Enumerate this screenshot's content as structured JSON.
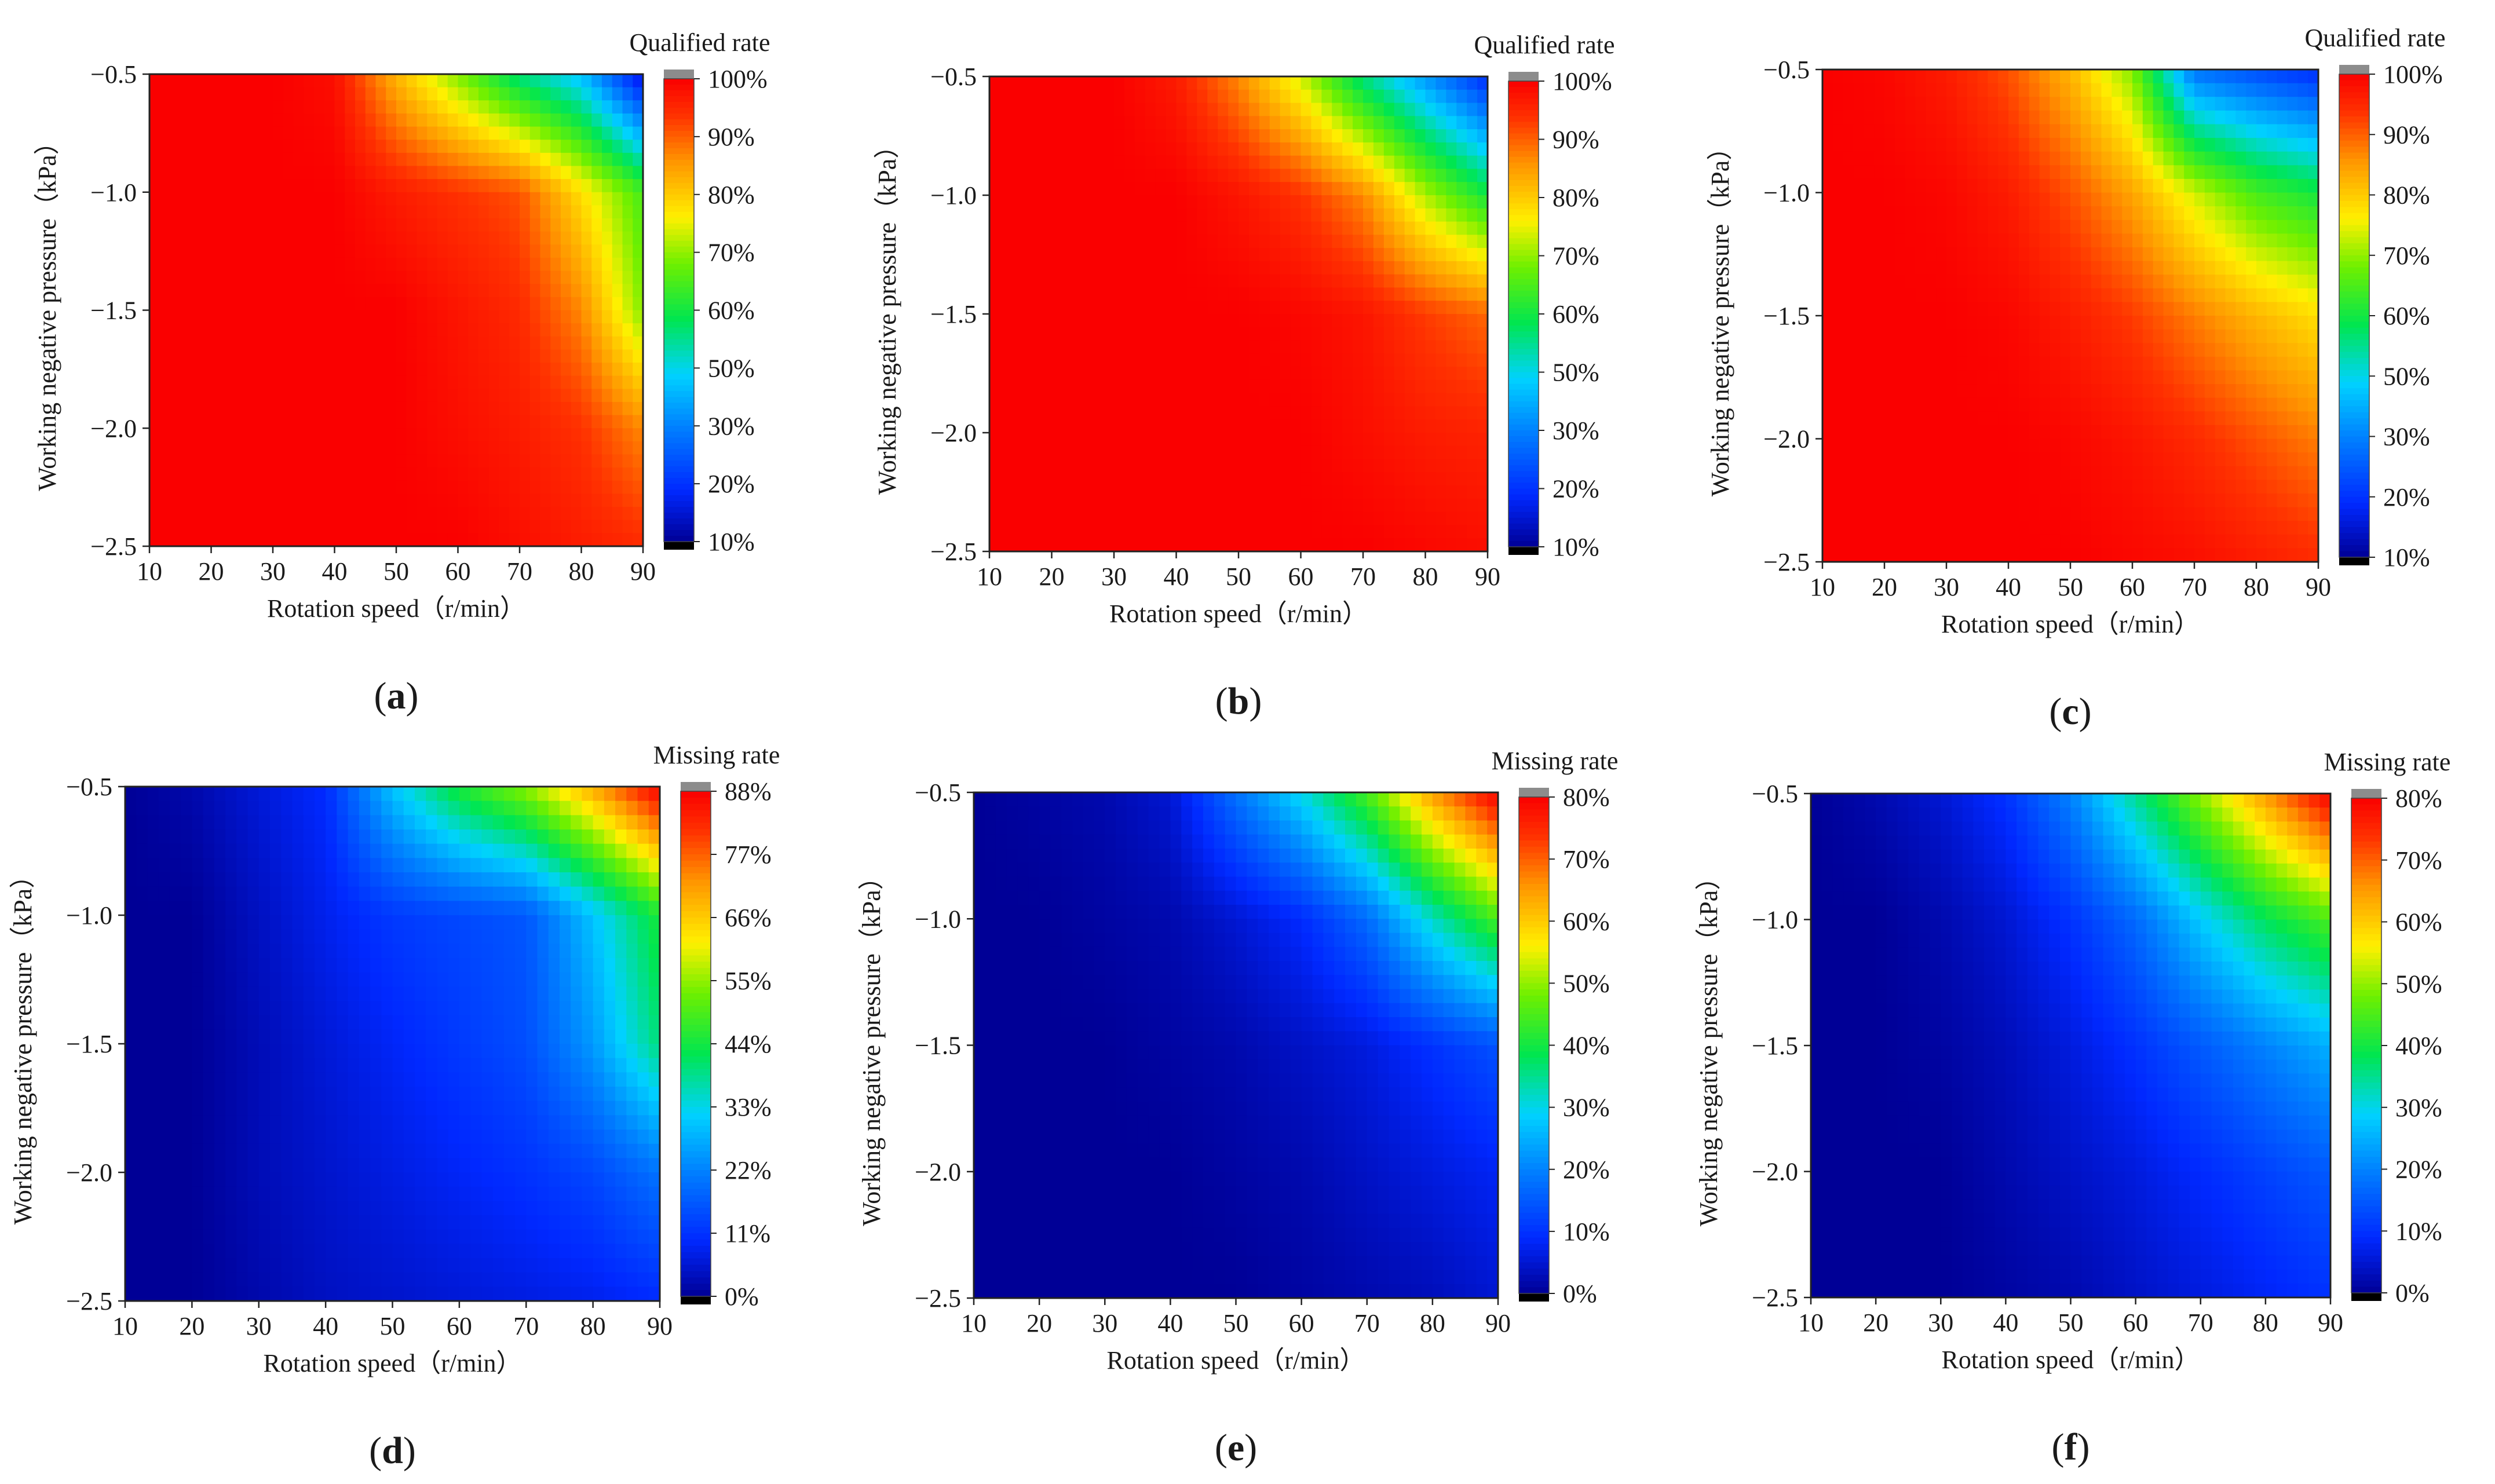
{
  "figure": {
    "panels": [
      {
        "id": "a",
        "caption": "a",
        "colorbar_title": "Qualified rate",
        "colorbar_ticks": [
          "100%",
          "90%",
          "80%",
          "70%",
          "60%",
          "50%",
          "30%",
          "20%",
          "10%"
        ]
      },
      {
        "id": "b",
        "caption": "b",
        "colorbar_title": "Qualified rate",
        "colorbar_ticks": [
          "100%",
          "90%",
          "80%",
          "70%",
          "60%",
          "50%",
          "30%",
          "20%",
          "10%"
        ]
      },
      {
        "id": "c",
        "caption": "c",
        "colorbar_title": "Qualified rate",
        "colorbar_ticks": [
          "100%",
          "90%",
          "80%",
          "70%",
          "60%",
          "50%",
          "30%",
          "20%",
          "10%"
        ]
      },
      {
        "id": "d",
        "caption": "d",
        "colorbar_title": "Missing rate",
        "colorbar_ticks": [
          "88%",
          "77%",
          "66%",
          "55%",
          "44%",
          "33%",
          "22%",
          "11%",
          "0%"
        ]
      },
      {
        "id": "e",
        "caption": "e",
        "colorbar_title": "Missing rate",
        "colorbar_ticks": [
          "80%",
          "70%",
          "60%",
          "50%",
          "40%",
          "30%",
          "20%",
          "10%",
          "0%"
        ]
      },
      {
        "id": "f",
        "caption": "f",
        "colorbar_title": "Missing rate",
        "colorbar_ticks": [
          "80%",
          "70%",
          "60%",
          "50%",
          "40%",
          "30%",
          "20%",
          "10%",
          "0%"
        ]
      }
    ]
  },
  "chart_data": [
    {
      "type": "heatmap",
      "panel": "a",
      "title": "Qualified rate",
      "xlabel": "Rotation speed（r/min）",
      "ylabel": "Working negative pressure（kPa）",
      "x": [
        10,
        20,
        30,
        40,
        50,
        60,
        70,
        80,
        90
      ],
      "y": [
        -0.5,
        -1.0,
        -1.5,
        -2.0,
        -2.5
      ],
      "xticks": [
        "10",
        "20",
        "30",
        "40",
        "50",
        "60",
        "70",
        "80",
        "90"
      ],
      "yticks": [
        "−0.5",
        "−1.0",
        "−1.5",
        "−2.0",
        "−2.5"
      ],
      "z": [
        [
          100,
          100,
          100,
          98,
          80,
          65,
          50,
          40,
          15
        ],
        [
          100,
          100,
          100,
          100,
          96,
          93,
          90,
          75,
          60
        ],
        [
          100,
          100,
          100,
          100,
          100,
          97,
          94,
          85,
          65
        ],
        [
          100,
          100,
          100,
          100,
          100,
          98,
          96,
          93,
          85
        ],
        [
          100,
          100,
          100,
          100,
          100,
          100,
          98,
          96,
          94
        ]
      ],
      "zlim": [
        10,
        100
      ]
    },
    {
      "type": "heatmap",
      "panel": "b",
      "title": "Qualified rate",
      "xlabel": "Rotation speed（r/min）",
      "ylabel": "Working negative pressure（kPa）",
      "x": [
        10,
        20,
        30,
        40,
        50,
        60,
        70,
        80,
        90
      ],
      "y": [
        -0.5,
        -1.0,
        -1.5,
        -2.0,
        -2.5
      ],
      "xticks": [
        "10",
        "20",
        "30",
        "40",
        "50",
        "60",
        "70",
        "80",
        "90"
      ],
      "yticks": [
        "−0.5",
        "−1.0",
        "−1.5",
        "−2.0",
        "−2.5"
      ],
      "z": [
        [
          100,
          100,
          100,
          96,
          85,
          70,
          50,
          35,
          20
        ],
        [
          100,
          100,
          100,
          100,
          97,
          93,
          85,
          68,
          55
        ],
        [
          100,
          100,
          100,
          100,
          100,
          99,
          97,
          92,
          88
        ],
        [
          100,
          100,
          100,
          100,
          100,
          100,
          98,
          96,
          95
        ],
        [
          100,
          100,
          100,
          100,
          100,
          100,
          100,
          99,
          98
        ]
      ],
      "zlim": [
        10,
        100
      ]
    },
    {
      "type": "heatmap",
      "panel": "c",
      "title": "Qualified rate",
      "xlabel": "Rotation speed（r/min）",
      "ylabel": "Working negative pressure（kPa）",
      "x": [
        10,
        20,
        30,
        40,
        50,
        60,
        70,
        80,
        90
      ],
      "y": [
        -0.5,
        -1.0,
        -1.5,
        -2.0,
        -2.5
      ],
      "xticks": [
        "10",
        "20",
        "30",
        "40",
        "50",
        "60",
        "70",
        "80",
        "90"
      ],
      "yticks": [
        "−0.5",
        "−1.0",
        "−1.5",
        "−2.0",
        "−2.5"
      ],
      "z": [
        [
          100,
          99,
          96,
          90,
          80,
          65,
          30,
          25,
          20
        ],
        [
          100,
          100,
          99,
          96,
          90,
          82,
          70,
          60,
          55
        ],
        [
          100,
          100,
          100,
          99,
          96,
          92,
          86,
          80,
          75
        ],
        [
          100,
          100,
          100,
          100,
          99,
          97,
          94,
          90,
          86
        ],
        [
          100,
          100,
          100,
          100,
          100,
          99,
          98,
          96,
          94
        ]
      ],
      "zlim": [
        10,
        100
      ]
    },
    {
      "type": "heatmap",
      "panel": "d",
      "title": "Missing rate",
      "xlabel": "Rotation speed（r/min）",
      "ylabel": "Working negative pressure（kPa）",
      "x": [
        10,
        20,
        30,
        40,
        50,
        60,
        70,
        80,
        90
      ],
      "y": [
        -0.5,
        -1.0,
        -1.5,
        -2.0,
        -2.5
      ],
      "xticks": [
        "10",
        "20",
        "30",
        "40",
        "50",
        "60",
        "70",
        "80",
        "90"
      ],
      "yticks": [
        "−0.5",
        "−1.0",
        "−1.5",
        "−2.0",
        "−2.5"
      ],
      "z": [
        [
          0,
          2,
          6,
          10,
          30,
          45,
          55,
          70,
          88
        ],
        [
          0,
          0,
          4,
          8,
          12,
          14,
          16,
          30,
          45
        ],
        [
          0,
          0,
          3,
          6,
          9,
          12,
          15,
          25,
          40
        ],
        [
          0,
          0,
          3,
          5,
          7,
          9,
          11,
          14,
          20
        ],
        [
          0,
          0,
          2,
          4,
          5,
          6,
          7,
          8,
          10
        ]
      ],
      "zlim": [
        0,
        88
      ]
    },
    {
      "type": "heatmap",
      "panel": "e",
      "title": "Missing rate",
      "xlabel": "Rotation speed（r/min）",
      "ylabel": "Working negative pressure（kPa）",
      "x": [
        10,
        20,
        30,
        40,
        50,
        60,
        70,
        80,
        90
      ],
      "y": [
        -0.5,
        -1.0,
        -1.5,
        -2.0,
        -2.5
      ],
      "xticks": [
        "10",
        "20",
        "30",
        "40",
        "50",
        "60",
        "70",
        "80",
        "90"
      ],
      "yticks": [
        "−0.5",
        "−1.0",
        "−1.5",
        "−2.0",
        "−2.5"
      ],
      "z": [
        [
          0,
          1,
          2,
          5,
          18,
          30,
          45,
          65,
          80
        ],
        [
          0,
          0,
          1,
          2,
          5,
          9,
          17,
          32,
          45
        ],
        [
          0,
          0,
          0,
          1,
          2,
          4,
          6,
          10,
          14
        ],
        [
          0,
          0,
          0,
          0,
          1,
          2,
          4,
          6,
          8
        ],
        [
          0,
          0,
          0,
          0,
          0,
          1,
          2,
          3,
          5
        ]
      ],
      "zlim": [
        0,
        80
      ]
    },
    {
      "type": "heatmap",
      "panel": "f",
      "title": "Missing rate",
      "xlabel": "Rotation speed（r/min）",
      "ylabel": "Working negative pressure（kPa）",
      "x": [
        10,
        20,
        30,
        40,
        50,
        60,
        70,
        80,
        90
      ],
      "y": [
        -0.5,
        -1.0,
        -1.5,
        -2.0,
        -2.5
      ],
      "xticks": [
        "10",
        "20",
        "30",
        "40",
        "50",
        "60",
        "70",
        "80",
        "90"
      ],
      "yticks": [
        "−0.5",
        "−1.0",
        "−1.5",
        "−2.0",
        "−2.5"
      ],
      "z": [
        [
          0,
          2,
          5,
          10,
          20,
          35,
          50,
          65,
          80
        ],
        [
          0,
          0,
          2,
          5,
          10,
          17,
          28,
          38,
          45
        ],
        [
          0,
          0,
          1,
          3,
          6,
          10,
          15,
          20,
          25
        ],
        [
          0,
          0,
          0,
          2,
          4,
          6,
          9,
          12,
          15
        ],
        [
          0,
          0,
          0,
          1,
          2,
          4,
          6,
          8,
          10
        ]
      ],
      "zlim": [
        0,
        80
      ]
    }
  ]
}
